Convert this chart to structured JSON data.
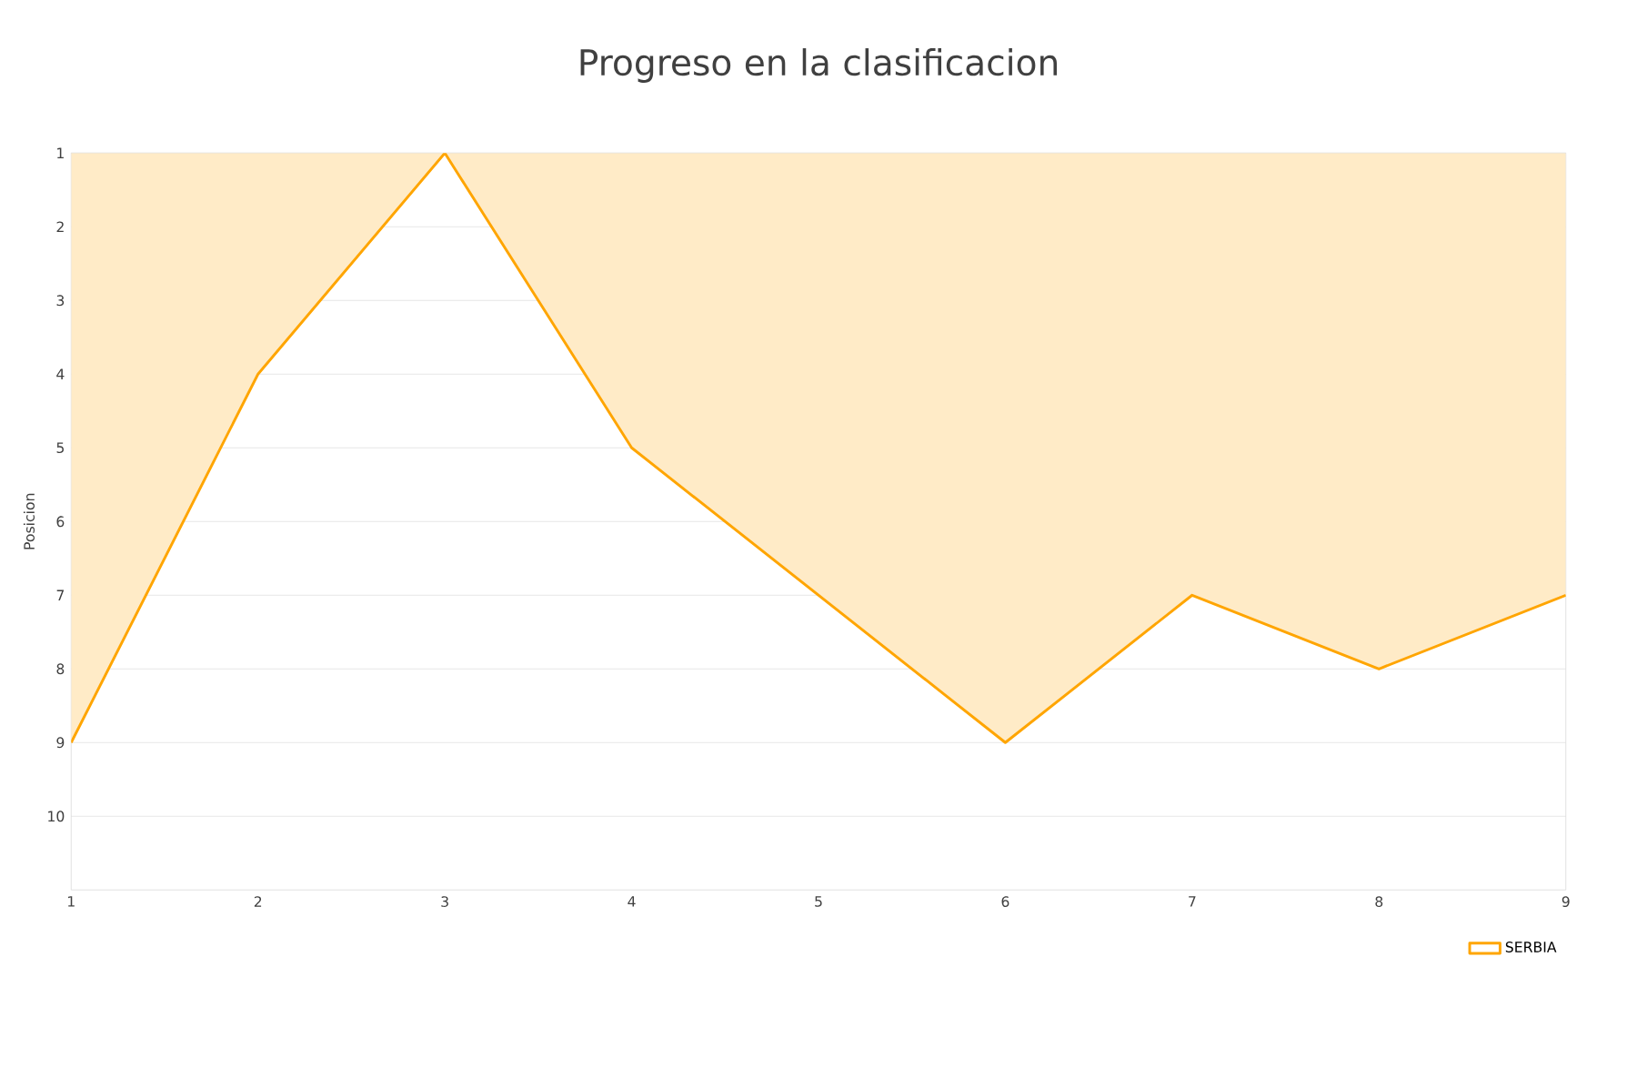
{
  "chart_data": {
    "type": "area",
    "title": "Progreso en la clasificacion",
    "ylabel": "Posicion",
    "x": [
      1,
      2,
      3,
      4,
      5,
      6,
      7,
      8,
      9
    ],
    "series": [
      {
        "name": "SERBIA",
        "color": "#ffa500",
        "values": [
          9,
          4,
          1,
          5,
          7,
          9,
          7,
          8,
          7
        ]
      }
    ],
    "xlim": [
      1,
      9
    ],
    "xticks": [
      1,
      2,
      3,
      4,
      5,
      6,
      7,
      8,
      9
    ],
    "ylim": [
      11,
      1
    ],
    "yticks": [
      1,
      2,
      3,
      4,
      5,
      6,
      7,
      8,
      9,
      10
    ],
    "grid": "y",
    "legend": "bottom right",
    "marker": "none"
  }
}
